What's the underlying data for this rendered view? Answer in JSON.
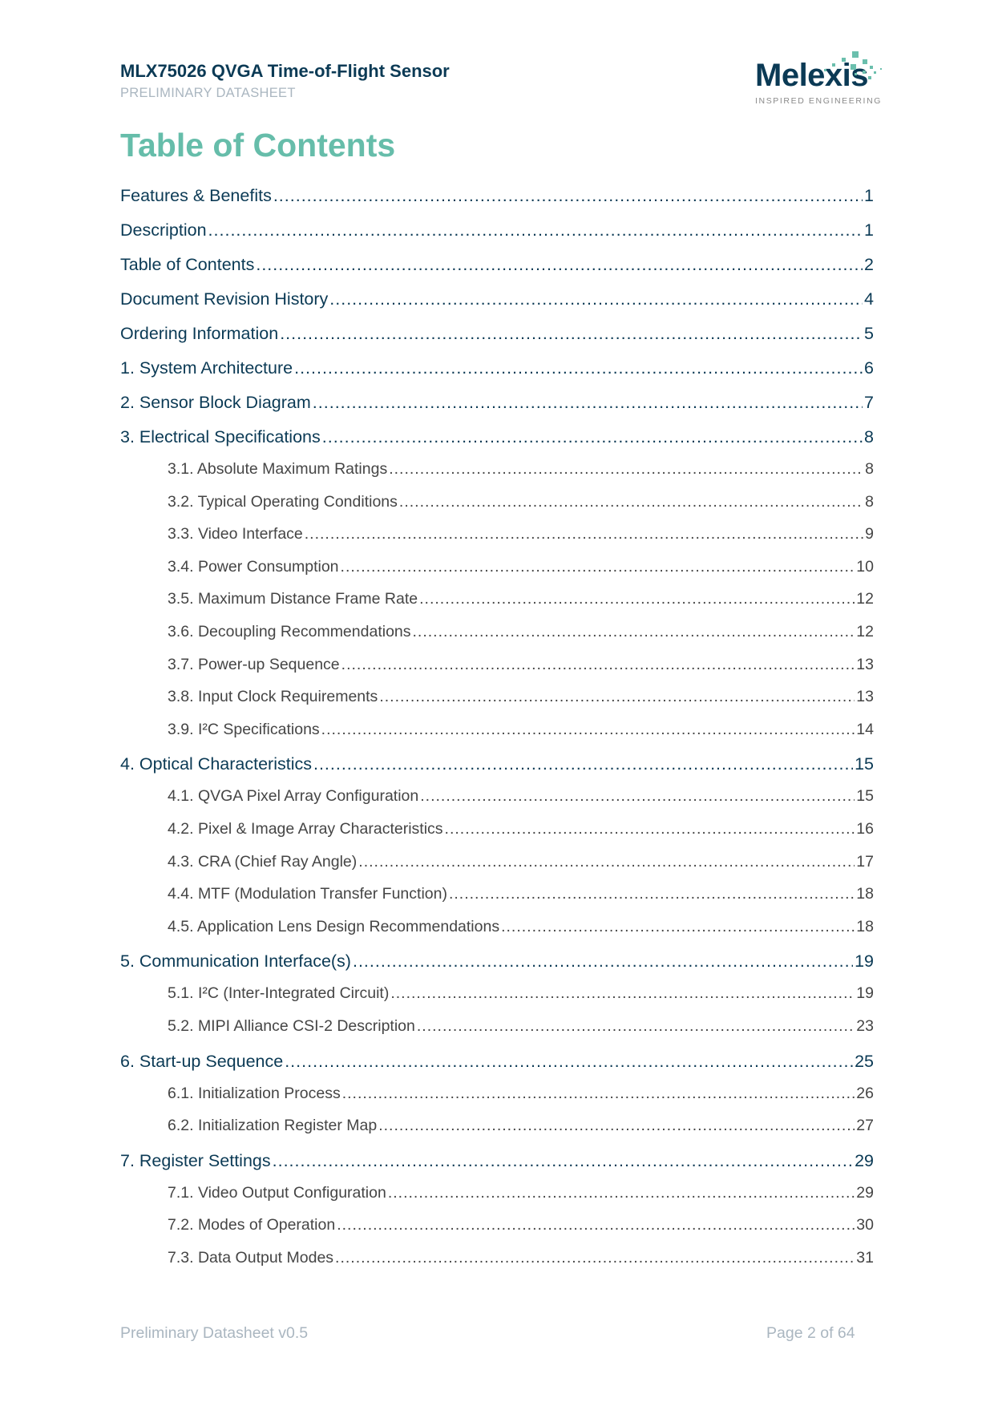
{
  "header": {
    "title": "MLX75026 QVGA Time-of-Flight Sensor",
    "subtitle": "PRELIMINARY DATASHEET",
    "logo": {
      "word": "Melexis",
      "tagline": "INSPIRED  ENGINEERING"
    }
  },
  "toc": {
    "heading": "Table of Contents",
    "entries": [
      {
        "level": 1,
        "label": "Features & Benefits",
        "page": "1"
      },
      {
        "level": 1,
        "label": "Description",
        "page": "1"
      },
      {
        "level": 1,
        "label": "Table of Contents",
        "page": "2"
      },
      {
        "level": 1,
        "label": "Document Revision History",
        "page": "4"
      },
      {
        "level": 1,
        "label": "Ordering Information",
        "page": "5"
      },
      {
        "level": 1,
        "label": "1. System Architecture",
        "page": "6"
      },
      {
        "level": 1,
        "label": "2. Sensor Block Diagram",
        "page": "7"
      },
      {
        "level": 1,
        "label": "3. Electrical Specifications",
        "page": "8"
      },
      {
        "level": 2,
        "label": "3.1. Absolute Maximum Ratings",
        "page": "8"
      },
      {
        "level": 2,
        "label": "3.2. Typical Operating Conditions",
        "page": "8"
      },
      {
        "level": 2,
        "label": "3.3. Video Interface",
        "page": "9"
      },
      {
        "level": 2,
        "label": "3.4. Power Consumption",
        "page": "10"
      },
      {
        "level": 2,
        "label": "3.5. Maximum Distance Frame Rate",
        "page": "12"
      },
      {
        "level": 2,
        "label": "3.6. Decoupling Recommendations",
        "page": "12"
      },
      {
        "level": 2,
        "label": "3.7. Power-up Sequence",
        "page": "13"
      },
      {
        "level": 2,
        "label": "3.8. Input Clock Requirements",
        "page": "13"
      },
      {
        "level": 2,
        "label": "3.9. I²C Specifications",
        "page": "14"
      },
      {
        "level": 1,
        "label": "4. Optical Characteristics",
        "page": "15"
      },
      {
        "level": 2,
        "label": "4.1. QVGA Pixel Array Configuration",
        "page": "15"
      },
      {
        "level": 2,
        "label": "4.2. Pixel & Image Array Characteristics",
        "page": "16"
      },
      {
        "level": 2,
        "label": "4.3. CRA (Chief Ray Angle)",
        "page": "17"
      },
      {
        "level": 2,
        "label": "4.4. MTF (Modulation Transfer Function)",
        "page": "18"
      },
      {
        "level": 2,
        "label": "4.5. Application Lens Design Recommendations",
        "page": "18"
      },
      {
        "level": 1,
        "label": "5. Communication Interface(s)",
        "page": "19"
      },
      {
        "level": 2,
        "label": "5.1. I²C (Inter-Integrated Circuit)",
        "page": "19"
      },
      {
        "level": 2,
        "label": "5.2. MIPI Alliance CSI-2 Description",
        "page": "23"
      },
      {
        "level": 1,
        "label": "6. Start-up Sequence",
        "page": "25"
      },
      {
        "level": 2,
        "label": "6.1. Initialization Process",
        "page": "26"
      },
      {
        "level": 2,
        "label": "6.2. Initialization Register Map",
        "page": "27"
      },
      {
        "level": 1,
        "label": "7. Register Settings",
        "page": "29"
      },
      {
        "level": 2,
        "label": "7.1. Video Output Configuration",
        "page": "29"
      },
      {
        "level": 2,
        "label": "7.2. Modes of Operation",
        "page": "30"
      },
      {
        "level": 2,
        "label": "7.3. Data Output Modes",
        "page": "31"
      }
    ]
  },
  "footer": {
    "left": "Preliminary Datasheet v0.5",
    "right": "Page 2 of 64"
  },
  "colors": {
    "primary": "#0b3a55",
    "accent": "#66bdaa",
    "muted": "#aab6c0",
    "body": "#454545"
  }
}
